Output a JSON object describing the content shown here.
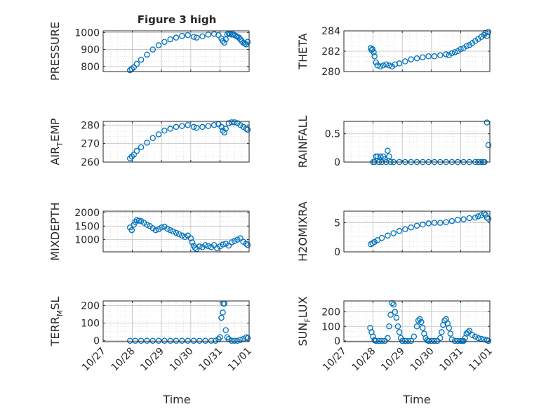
{
  "figure": {
    "title": "Figure 3 high"
  },
  "colors": {
    "marker": "#0072BD",
    "axis": "#262626",
    "grid": "#d5d5d5",
    "background": "#ffffff"
  },
  "chart_data": [
    {
      "type": "scatter",
      "ylabel_main": "PRESSURE",
      "ylabel_sub": "",
      "ylabel_tail": "",
      "xlim": [
        "10/27",
        "11/01"
      ],
      "ylim": [
        770,
        1010
      ],
      "yticks": [
        800,
        900,
        1000
      ],
      "xticks": [
        "10/27",
        "10/28",
        "10/29",
        "10/30",
        "10/31",
        "11/01"
      ],
      "grid": true,
      "minor_grid": true,
      "x": [
        0.92,
        0.98,
        1.05,
        1.15,
        1.3,
        1.5,
        1.7,
        1.9,
        2.1,
        2.3,
        2.5,
        2.7,
        2.9,
        3.1,
        3.2,
        3.4,
        3.6,
        3.8,
        3.95,
        4.05,
        4.1,
        4.15,
        4.2,
        4.25,
        4.3,
        4.35,
        4.4,
        4.45,
        4.5,
        4.55,
        4.6,
        4.65,
        4.7,
        4.75,
        4.8,
        4.85,
        4.9,
        4.95
      ],
      "y": [
        778,
        785,
        795,
        815,
        840,
        870,
        900,
        925,
        945,
        960,
        970,
        980,
        985,
        975,
        970,
        978,
        988,
        992,
        985,
        965,
        950,
        940,
        960,
        990,
        995,
        992,
        988,
        990,
        985,
        980,
        975,
        970,
        960,
        950,
        940,
        935,
        930,
        945
      ]
    },
    {
      "type": "scatter",
      "ylabel_main": "THETA",
      "ylabel_sub": "",
      "ylabel_tail": "",
      "xlim": [
        "10/27",
        "11/01"
      ],
      "ylim": [
        280,
        284
      ],
      "yticks": [
        280,
        282,
        284
      ],
      "xticks": [
        "10/27",
        "10/28",
        "10/29",
        "10/30",
        "10/31",
        "11/01"
      ],
      "grid": true,
      "minor_grid": true,
      "x": [
        0.92,
        0.95,
        0.98,
        1.02,
        1.05,
        1.1,
        1.15,
        1.25,
        1.35,
        1.45,
        1.55,
        1.65,
        1.75,
        1.9,
        2.1,
        2.3,
        2.5,
        2.7,
        2.9,
        3.1,
        3.3,
        3.5,
        3.6,
        3.7,
        3.8,
        3.9,
        4.0,
        4.1,
        4.2,
        4.3,
        4.4,
        4.5,
        4.6,
        4.7,
        4.8,
        4.85,
        4.9,
        4.95
      ],
      "y": [
        282.3,
        282.1,
        282.2,
        281.9,
        281.5,
        280.9,
        280.6,
        280.5,
        280.6,
        280.7,
        280.6,
        280.5,
        280.7,
        280.8,
        281.0,
        281.2,
        281.3,
        281.4,
        281.5,
        281.5,
        281.6,
        281.7,
        281.6,
        281.8,
        281.9,
        282.0,
        282.2,
        282.3,
        282.5,
        282.6,
        282.8,
        283.0,
        283.2,
        283.4,
        283.6,
        283.8,
        283.5,
        283.9
      ]
    },
    {
      "type": "scatter",
      "ylabel_main": "AIR",
      "ylabel_sub": "T",
      "ylabel_tail": "EMP",
      "xlim": [
        "10/27",
        "11/01"
      ],
      "ylim": [
        260,
        282
      ],
      "yticks": [
        260,
        270,
        280
      ],
      "xticks": [
        "10/27",
        "10/28",
        "10/29",
        "10/30",
        "10/31",
        "11/01"
      ],
      "grid": true,
      "minor_grid": true,
      "x": [
        0.92,
        0.98,
        1.05,
        1.15,
        1.3,
        1.5,
        1.7,
        1.9,
        2.1,
        2.3,
        2.5,
        2.7,
        2.9,
        3.1,
        3.2,
        3.4,
        3.6,
        3.8,
        3.95,
        4.05,
        4.1,
        4.15,
        4.2,
        4.3,
        4.4,
        4.5,
        4.6,
        4.7,
        4.8,
        4.9,
        4.95
      ],
      "y": [
        262,
        263,
        264,
        266,
        268,
        270.5,
        273,
        275,
        277,
        278,
        279,
        279.5,
        280,
        279,
        278.5,
        279,
        279.5,
        280,
        280.5,
        279,
        277,
        276,
        278,
        281,
        281.5,
        281.5,
        281,
        280,
        279,
        278,
        277.5
      ]
    },
    {
      "type": "scatter",
      "ylabel_main": "RAINFALL",
      "ylabel_sub": "",
      "ylabel_tail": "",
      "xlim": [
        "10/27",
        "11/01"
      ],
      "ylim": [
        0,
        0.72
      ],
      "yticks": [
        0,
        0.5
      ],
      "xticks": [
        "10/27",
        "10/28",
        "10/29",
        "10/30",
        "10/31",
        "11/01"
      ],
      "grid": true,
      "minor_grid": true,
      "x": [
        1.0,
        1.05,
        1.1,
        1.15,
        1.2,
        1.25,
        1.3,
        1.35,
        1.4,
        1.45,
        1.5,
        1.55,
        1.6,
        1.7,
        1.9,
        2.1,
        2.3,
        2.5,
        2.7,
        2.9,
        3.1,
        3.3,
        3.5,
        3.7,
        3.9,
        4.1,
        4.3,
        4.5,
        4.6,
        4.7,
        4.78,
        4.82,
        4.9,
        4.95
      ],
      "y": [
        0,
        0,
        0.1,
        0.1,
        0,
        0.1,
        0,
        0.1,
        0.05,
        0,
        0.2,
        0.1,
        0,
        0,
        0,
        0,
        0,
        0,
        0,
        0,
        0,
        0,
        0,
        0,
        0,
        0,
        0,
        0,
        0,
        0,
        0,
        0,
        0.7,
        0.3
      ]
    },
    {
      "type": "scatter",
      "ylabel_main": "MIXDEPTH",
      "ylabel_sub": "",
      "ylabel_tail": "",
      "xlim": [
        "10/27",
        "11/01"
      ],
      "ylim": [
        550,
        2050
      ],
      "yticks": [
        1000,
        1500,
        2000
      ],
      "xticks": [
        "10/27",
        "10/28",
        "10/29",
        "10/30",
        "10/31",
        "11/01"
      ],
      "grid": true,
      "minor_grid": true,
      "x": [
        0.92,
        0.98,
        1.05,
        1.1,
        1.15,
        1.22,
        1.3,
        1.4,
        1.5,
        1.6,
        1.7,
        1.8,
        1.9,
        2.0,
        2.1,
        2.2,
        2.3,
        2.4,
        2.5,
        2.6,
        2.7,
        2.8,
        2.9,
        3.0,
        3.05,
        3.1,
        3.15,
        3.2,
        3.3,
        3.4,
        3.5,
        3.6,
        3.7,
        3.8,
        3.9,
        4.0,
        4.1,
        4.2,
        4.3,
        4.4,
        4.5,
        4.6,
        4.7,
        4.8,
        4.9,
        4.95
      ],
      "y": [
        1450,
        1350,
        1550,
        1650,
        1720,
        1700,
        1680,
        1620,
        1550,
        1500,
        1420,
        1350,
        1380,
        1450,
        1480,
        1400,
        1350,
        1300,
        1250,
        1200,
        1150,
        1100,
        1150,
        1050,
        900,
        780,
        700,
        650,
        750,
        720,
        800,
        760,
        720,
        800,
        680,
        750,
        820,
        850,
        780,
        900,
        950,
        1000,
        1050,
        920,
        850,
        800
      ]
    },
    {
      "type": "scatter",
      "ylabel_main": "H2OMIXRA",
      "ylabel_sub": "",
      "ylabel_tail": "",
      "xlim": [
        "10/27",
        "11/01"
      ],
      "ylim": [
        0,
        7
      ],
      "yticks": [
        0,
        5
      ],
      "xticks": [
        "10/27",
        "10/28",
        "10/29",
        "10/30",
        "10/31",
        "11/01"
      ],
      "grid": true,
      "minor_grid": true,
      "x": [
        0.92,
        0.98,
        1.05,
        1.15,
        1.3,
        1.5,
        1.7,
        1.9,
        2.1,
        2.3,
        2.5,
        2.7,
        2.9,
        3.1,
        3.3,
        3.5,
        3.7,
        3.9,
        4.1,
        4.3,
        4.5,
        4.6,
        4.7,
        4.8,
        4.85,
        4.9,
        4.95
      ],
      "y": [
        1.3,
        1.5,
        1.7,
        2.0,
        2.4,
        2.8,
        3.2,
        3.6,
        3.9,
        4.2,
        4.5,
        4.7,
        4.9,
        5.0,
        5.0,
        5.1,
        5.3,
        5.5,
        5.6,
        5.8,
        5.9,
        6.1,
        6.3,
        6.6,
        6.4,
        5.9,
        5.7
      ]
    },
    {
      "type": "scatter",
      "ylabel_main": "TERR",
      "ylabel_sub": "M",
      "ylabel_tail": "SL",
      "xlim": [
        "10/27",
        "11/01"
      ],
      "ylim": [
        -5,
        225
      ],
      "yticks": [
        0,
        100,
        200
      ],
      "xticks": [
        "10/27",
        "10/28",
        "10/29",
        "10/30",
        "10/31",
        "11/01"
      ],
      "grid": true,
      "minor_grid": true,
      "x": [
        0.92,
        1.1,
        1.3,
        1.5,
        1.7,
        1.9,
        2.1,
        2.3,
        2.5,
        2.7,
        2.9,
        3.1,
        3.3,
        3.5,
        3.7,
        3.85,
        3.95,
        4.0,
        4.05,
        4.1,
        4.12,
        4.15,
        4.2,
        4.25,
        4.3,
        4.4,
        4.5,
        4.6,
        4.7,
        4.8,
        4.9,
        4.95
      ],
      "y": [
        0,
        0,
        0,
        0,
        0,
        0,
        0,
        0,
        0,
        0,
        0,
        0,
        0,
        0,
        0,
        0,
        10,
        20,
        130,
        160,
        210,
        210,
        60,
        20,
        10,
        0,
        0,
        0,
        5,
        10,
        20,
        15
      ]
    },
    {
      "type": "scatter",
      "ylabel_main": "SUN",
      "ylabel_sub": "F",
      "ylabel_tail": "LUX",
      "xlim": [
        "10/27",
        "11/01"
      ],
      "ylim": [
        -5,
        275
      ],
      "yticks": [
        0,
        100,
        200
      ],
      "xticks": [
        "10/27",
        "10/28",
        "10/29",
        "10/30",
        "10/31",
        "11/01"
      ],
      "grid": true,
      "minor_grid": true,
      "x": [
        0.9,
        0.95,
        1.0,
        1.05,
        1.1,
        1.2,
        1.3,
        1.4,
        1.5,
        1.55,
        1.6,
        1.65,
        1.7,
        1.75,
        1.8,
        1.85,
        1.9,
        1.95,
        2.0,
        2.1,
        2.2,
        2.3,
        2.4,
        2.5,
        2.55,
        2.6,
        2.65,
        2.7,
        2.75,
        2.8,
        2.85,
        2.9,
        3.0,
        3.1,
        3.2,
        3.3,
        3.35,
        3.4,
        3.45,
        3.5,
        3.55,
        3.6,
        3.65,
        3.7,
        3.8,
        3.9,
        4.0,
        4.05,
        4.1,
        4.15,
        4.2,
        4.25,
        4.3,
        4.4,
        4.5,
        4.6,
        4.7,
        4.8,
        4.9,
        4.95
      ],
      "y": [
        90,
        60,
        30,
        5,
        0,
        0,
        0,
        0,
        20,
        100,
        180,
        260,
        250,
        200,
        160,
        100,
        60,
        20,
        0,
        0,
        0,
        0,
        30,
        100,
        140,
        150,
        130,
        90,
        50,
        20,
        5,
        0,
        0,
        0,
        0,
        20,
        60,
        110,
        140,
        150,
        120,
        90,
        50,
        10,
        0,
        0,
        0,
        0,
        0,
        20,
        50,
        60,
        70,
        40,
        30,
        20,
        15,
        10,
        5,
        0
      ]
    }
  ],
  "xlabel": "Time"
}
